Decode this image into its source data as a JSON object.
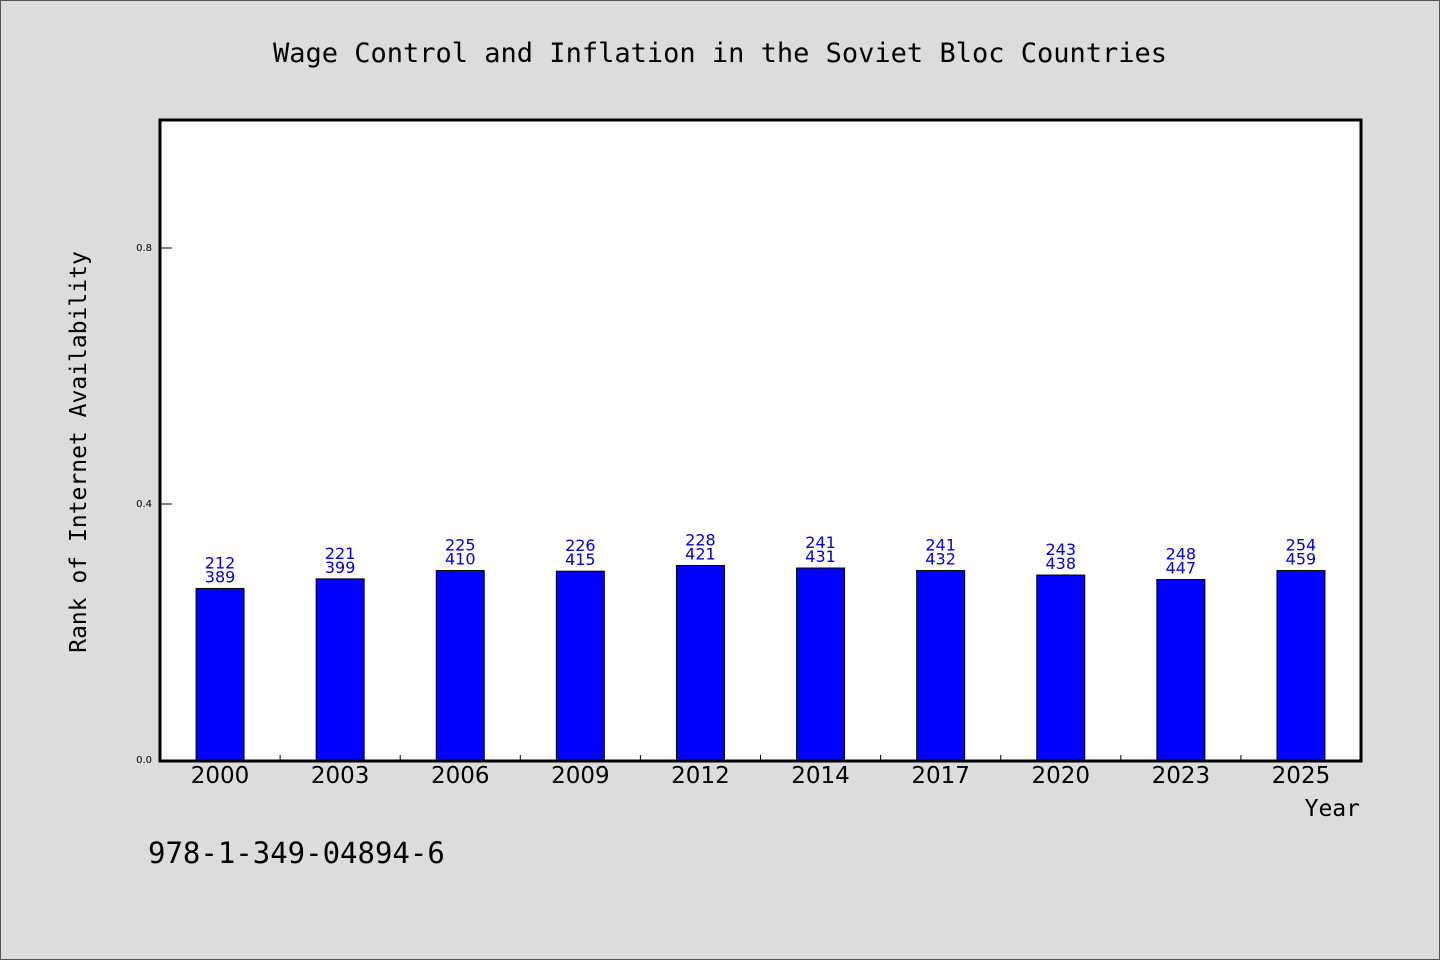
{
  "chart_data": {
    "type": "bar",
    "title": "Wage Control and Inflation in the Soviet Bloc Countries",
    "xlabel": "Year",
    "ylabel": "Rank of Internet Availability",
    "categories": [
      "2000",
      "2003",
      "2006",
      "2009",
      "2012",
      "2014",
      "2017",
      "2020",
      "2023",
      "2025"
    ],
    "values": [
      0.268,
      0.283,
      0.296,
      0.295,
      0.304,
      0.3,
      0.296,
      0.289,
      0.282,
      0.296
    ],
    "label_top": [
      "212",
      "221",
      "225",
      "226",
      "228",
      "241",
      "241",
      "243",
      "248",
      "254"
    ],
    "label_bottom": [
      "389",
      "399",
      "410",
      "415",
      "421",
      "431",
      "432",
      "438",
      "447",
      "459"
    ],
    "yticks": [
      "0.0",
      "0.4",
      "0.8"
    ],
    "ylim": [
      0,
      1.0
    ],
    "grid": false,
    "bar_color": "#0000ff",
    "label_color": "#0000cc",
    "background": "#dcdcdc",
    "plot_background": "#ffffff"
  },
  "footer": {
    "isbn": "978-1-349-04894-6"
  }
}
